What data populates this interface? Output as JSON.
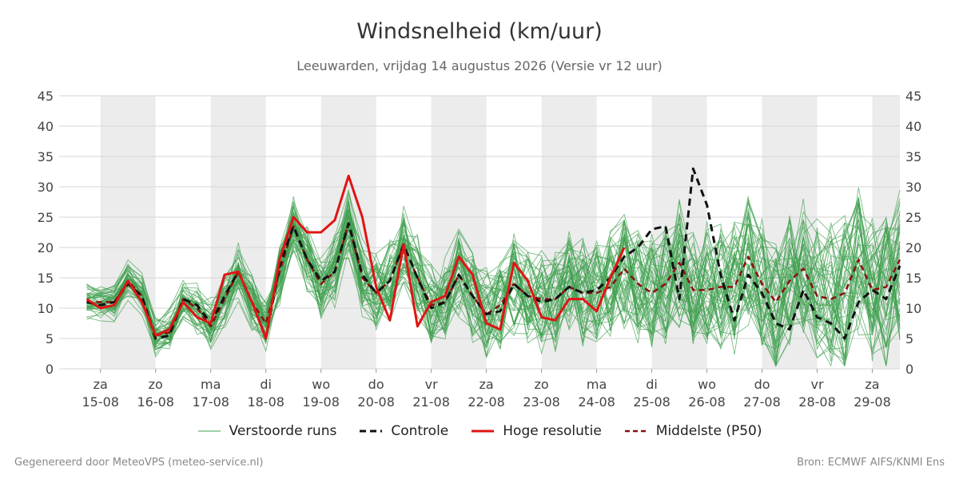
{
  "header": {
    "title": "Windsnelheid (km/uur)",
    "subtitle": "Leeuwarden, vrijdag 14 augustus 2026 (Versie vr 12 uur)"
  },
  "footer": {
    "generated": "Gegenereerd door MeteoVPS (meteo-service.nl)",
    "source": "Bron: ECMWF AIFS/KNMI Ens"
  },
  "legend": [
    {
      "label": "Verstoorde runs",
      "style": "thin",
      "color": "#3fa04f"
    },
    {
      "label": "Controle",
      "style": "dash",
      "color": "#111111"
    },
    {
      "label": "Hoge resolutie",
      "style": "solid",
      "color": "#e01414"
    },
    {
      "label": "Middelste (P50)",
      "style": "dash",
      "color": "#8b1010"
    }
  ],
  "chart_data": {
    "type": "line",
    "x_unit": "days from 15-08 00h",
    "x_range": [
      -0.75,
      14.5
    ],
    "ylim": [
      0,
      45
    ],
    "yticks": [
      0,
      5,
      10,
      15,
      20,
      25,
      30,
      35,
      40,
      45
    ],
    "grid": true,
    "x_tick_positions": [
      0,
      1,
      2,
      3,
      4,
      5,
      6,
      7,
      8,
      9,
      10,
      11,
      12,
      13,
      14
    ],
    "x_ticks": [
      {
        "day": "za",
        "date": "15-08"
      },
      {
        "day": "zo",
        "date": "16-08"
      },
      {
        "day": "ma",
        "date": "17-08"
      },
      {
        "day": "di",
        "date": "18-08"
      },
      {
        "day": "wo",
        "date": "19-08"
      },
      {
        "day": "do",
        "date": "20-08"
      },
      {
        "day": "vr",
        "date": "21-08"
      },
      {
        "day": "za",
        "date": "22-08"
      },
      {
        "day": "zo",
        "date": "23-08"
      },
      {
        "day": "ma",
        "date": "24-08"
      },
      {
        "day": "di",
        "date": "25-08"
      },
      {
        "day": "wo",
        "date": "26-08"
      },
      {
        "day": "do",
        "date": "27-08"
      },
      {
        "day": "vr",
        "date": "28-08"
      },
      {
        "day": "za",
        "date": "29-08"
      }
    ],
    "night_bands": [
      [
        0,
        1
      ],
      [
        2,
        3
      ],
      [
        4,
        5
      ],
      [
        6,
        7
      ],
      [
        8,
        9
      ],
      [
        10,
        11
      ],
      [
        12,
        13
      ],
      [
        14,
        14.5
      ]
    ],
    "x": [
      -0.25,
      0,
      0.25,
      0.5,
      0.75,
      1,
      1.25,
      1.5,
      1.75,
      2,
      2.25,
      2.5,
      2.75,
      3,
      3.25,
      3.5,
      3.75,
      4,
      4.25,
      4.5,
      4.75,
      5,
      5.25,
      5.5,
      5.75,
      6,
      6.25,
      6.5,
      6.75,
      7,
      7.25,
      7.5,
      7.75,
      8,
      8.25,
      8.5,
      8.75,
      9,
      9.25,
      9.5,
      9.75,
      10,
      10.25,
      10.5,
      10.75,
      11,
      11.25,
      11.5,
      11.75,
      12,
      12.25,
      12.5,
      12.75,
      13,
      13.25,
      13.5,
      13.75,
      14,
      14.25,
      14.5
    ],
    "series": [
      {
        "name": "Hoge resolutie",
        "color": "#e01414",
        "values": [
          11.5,
          10,
          10.5,
          14.5,
          11,
          5.5,
          6.5,
          11,
          8.5,
          7.5,
          15.5,
          16,
          11,
          5,
          18,
          25,
          22.5,
          22.5,
          24.5,
          31.8,
          25,
          13.5,
          8,
          20.5,
          7,
          11,
          12,
          18.5,
          15.5,
          7.5,
          6.5,
          17.5,
          14.5,
          8.5,
          8,
          11.5,
          11.5,
          9.5,
          15,
          20,
          null,
          null,
          null,
          null,
          null,
          null,
          null,
          null,
          null,
          null,
          null,
          null,
          null,
          null,
          null,
          null,
          null,
          null,
          null,
          null
        ]
      },
      {
        "name": "Controle",
        "color": "#111111",
        "values": [
          11,
          10.5,
          11,
          14,
          12,
          5,
          5.5,
          11.5,
          10.5,
          7.5,
          12,
          16,
          11,
          5,
          17,
          23.5,
          18,
          14.5,
          16,
          24,
          15.5,
          12.5,
          14.5,
          20.5,
          15,
          10,
          11,
          15.5,
          12,
          9,
          9.5,
          14,
          12,
          11,
          11.5,
          13.5,
          12.5,
          13,
          15,
          18.5,
          20,
          23,
          23.5,
          11.5,
          33,
          27,
          15.5,
          8,
          15.5,
          12.5,
          7.5,
          6.5,
          13,
          8.5,
          7.5,
          5,
          11,
          13,
          11.5,
          17
        ]
      },
      {
        "name": "Middelste (P50)",
        "color": "#8b1010",
        "values": [
          11,
          11,
          11,
          14.5,
          12,
          5.5,
          6,
          11.5,
          10,
          7,
          11.5,
          16,
          11,
          7.5,
          16,
          23.5,
          18,
          14,
          16,
          24,
          15,
          12.5,
          14.5,
          20.5,
          15,
          10.5,
          11,
          15.5,
          12,
          9,
          10.5,
          14,
          12,
          11.5,
          11.5,
          13.5,
          12.5,
          12.5,
          13.5,
          16.5,
          14,
          12.5,
          14,
          17.5,
          13,
          13,
          13.5,
          13.5,
          18.5,
          14,
          11,
          14.5,
          16.5,
          12,
          11.5,
          12.5,
          18,
          13,
          13.5,
          18
        ]
      }
    ]
  }
}
